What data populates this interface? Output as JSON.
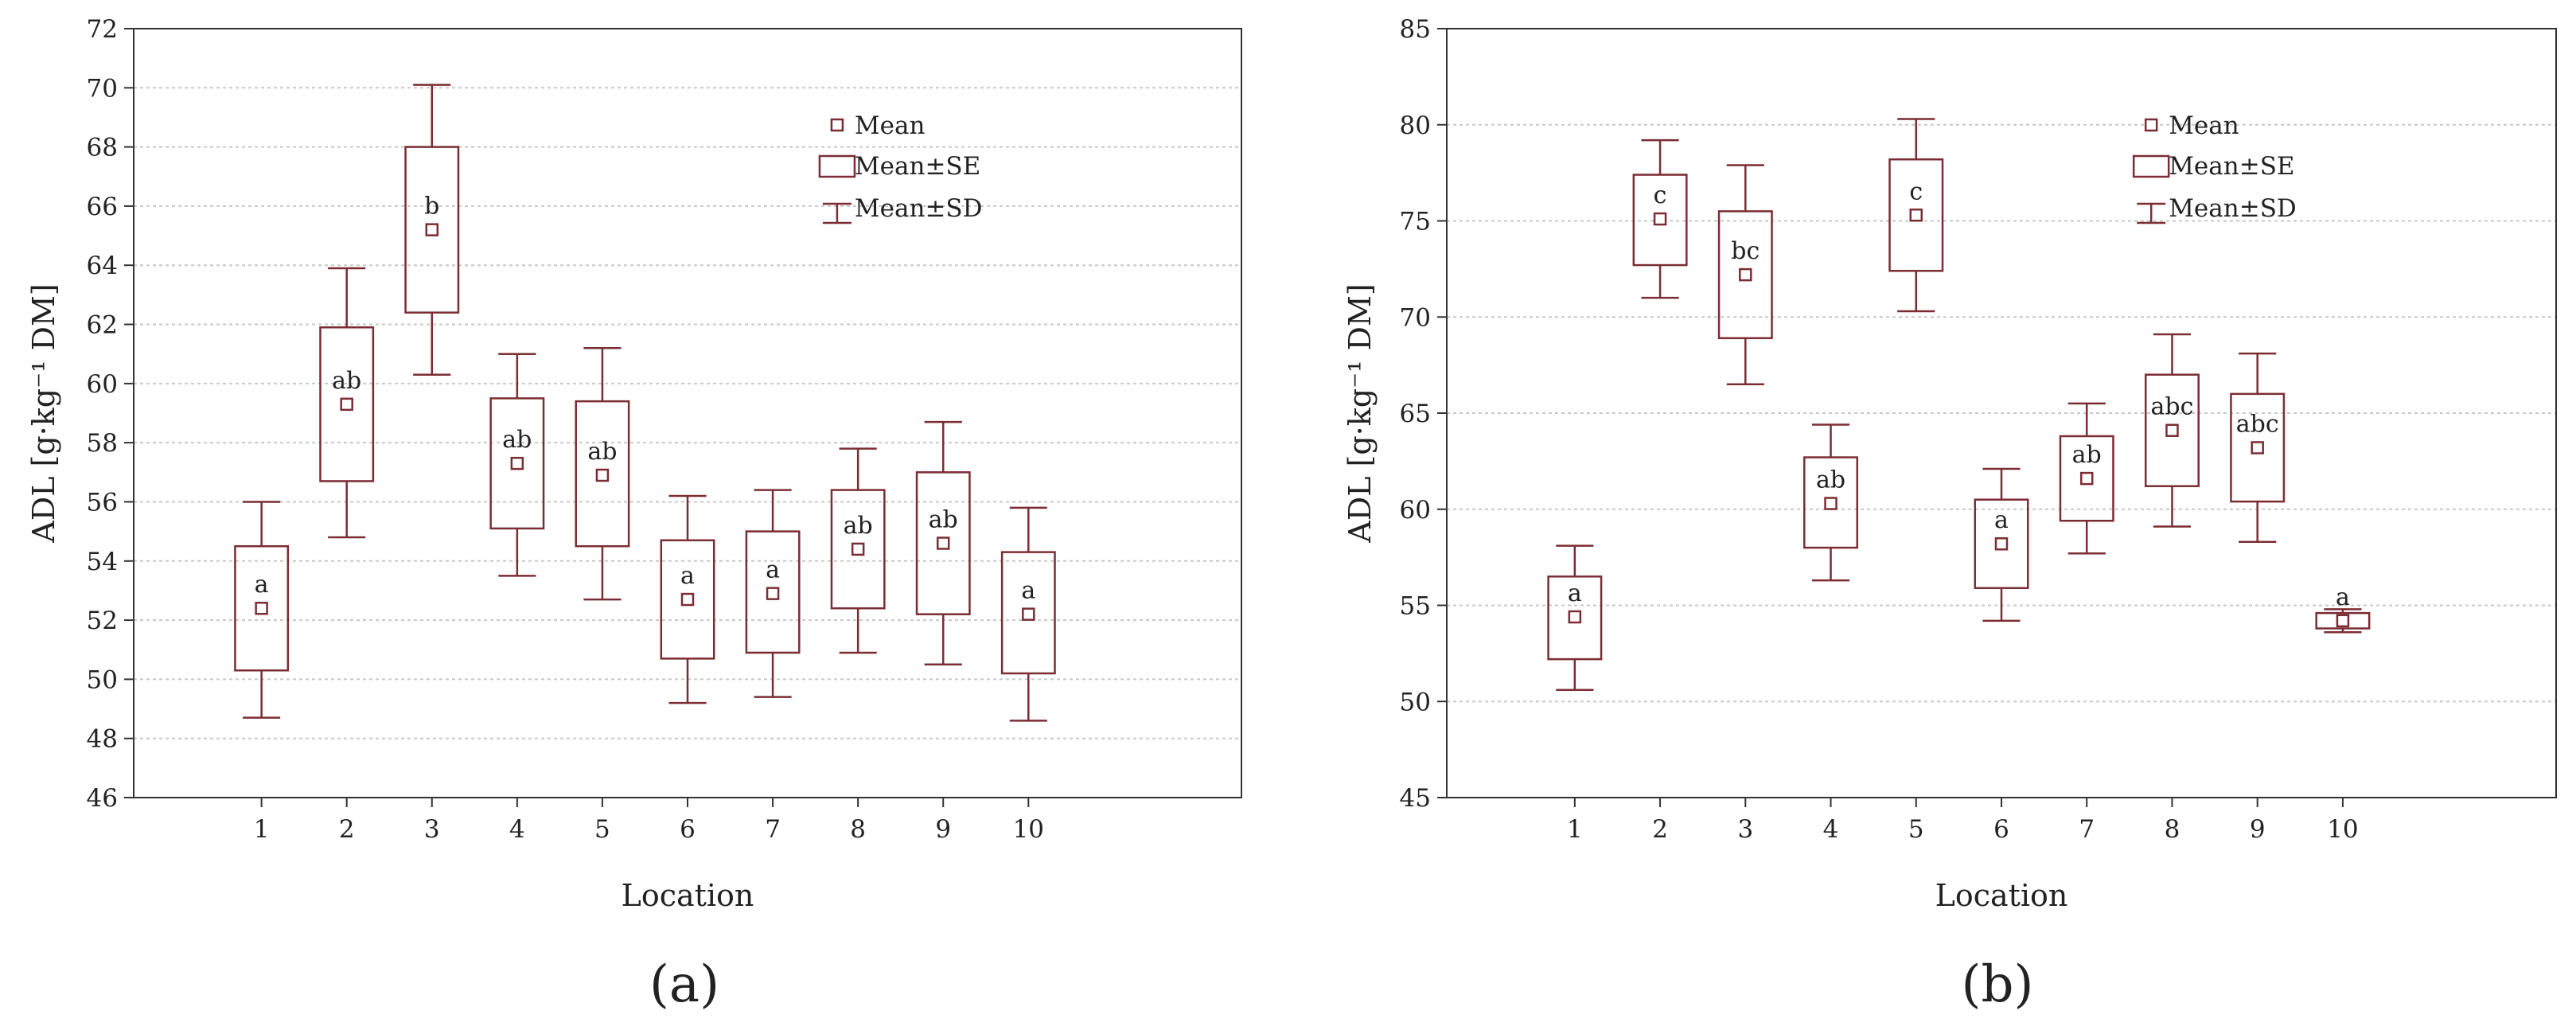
{
  "colors": {
    "box": "#7b2d33",
    "axis": "#333333",
    "grid": "#c8c8c8",
    "text": "#222222"
  },
  "legend": {
    "mean": "Mean",
    "se": "Mean±SE",
    "sd": "Mean±SD"
  },
  "chart_data": [
    {
      "type": "box",
      "panel_label": "(a)",
      "xlabel": "Location",
      "ylabel": "ADL [g·kg⁻¹ DM]",
      "ylim": [
        46,
        72
      ],
      "yticks": [
        46,
        48,
        50,
        52,
        54,
        56,
        58,
        60,
        62,
        64,
        66,
        68,
        70,
        72
      ],
      "categories": [
        "1",
        "2",
        "3",
        "4",
        "5",
        "6",
        "7",
        "8",
        "9",
        "10"
      ],
      "grid": true,
      "legend_position": "top-right",
      "series": [
        {
          "name": "Mean",
          "values": [
            52.4,
            59.3,
            65.2,
            57.3,
            56.9,
            52.7,
            52.9,
            54.4,
            54.6,
            52.2
          ]
        },
        {
          "name": "Mean±SE",
          "lower": [
            50.3,
            56.7,
            62.4,
            55.1,
            54.5,
            50.7,
            50.9,
            52.4,
            52.2,
            50.2
          ],
          "upper": [
            54.5,
            61.9,
            68.0,
            59.5,
            59.4,
            54.7,
            55.0,
            56.4,
            57.0,
            54.3
          ]
        },
        {
          "name": "Mean±SD",
          "lower": [
            48.7,
            54.8,
            60.3,
            53.5,
            52.7,
            49.2,
            49.4,
            50.9,
            50.5,
            48.6
          ],
          "upper": [
            56.0,
            63.9,
            70.1,
            61.0,
            61.2,
            56.2,
            56.4,
            57.8,
            58.7,
            55.8
          ]
        }
      ],
      "significance": [
        "a",
        "ab",
        "b",
        "ab",
        "ab",
        "a",
        "a",
        "ab",
        "ab",
        "a"
      ]
    },
    {
      "type": "box",
      "panel_label": "(b)",
      "xlabel": "Location",
      "ylabel": "ADL [g·kg⁻¹ DM]",
      "ylim": [
        45,
        85
      ],
      "yticks": [
        45,
        50,
        55,
        60,
        65,
        70,
        75,
        80,
        85
      ],
      "categories": [
        "1",
        "2",
        "3",
        "4",
        "5",
        "6",
        "7",
        "8",
        "9",
        "10"
      ],
      "grid": true,
      "legend_position": "top-right",
      "series": [
        {
          "name": "Mean",
          "values": [
            54.4,
            75.1,
            72.2,
            60.3,
            75.3,
            58.2,
            61.6,
            64.1,
            63.2,
            54.2
          ]
        },
        {
          "name": "Mean±SE",
          "lower": [
            52.2,
            72.7,
            68.9,
            58.0,
            72.4,
            55.9,
            59.4,
            61.2,
            60.4,
            53.8
          ],
          "upper": [
            56.5,
            77.4,
            75.5,
            62.7,
            78.2,
            60.5,
            63.8,
            67.0,
            66.0,
            54.6
          ]
        },
        {
          "name": "Mean±SD",
          "lower": [
            50.6,
            71.0,
            66.5,
            56.3,
            70.3,
            54.2,
            57.7,
            59.1,
            58.3,
            53.6
          ],
          "upper": [
            58.1,
            79.2,
            77.9,
            64.4,
            80.3,
            62.1,
            65.5,
            69.1,
            68.1,
            54.8
          ]
        }
      ],
      "significance": [
        "a",
        "c",
        "bc",
        "ab",
        "c",
        "a",
        "ab",
        "abc",
        "abc",
        "a"
      ]
    }
  ]
}
